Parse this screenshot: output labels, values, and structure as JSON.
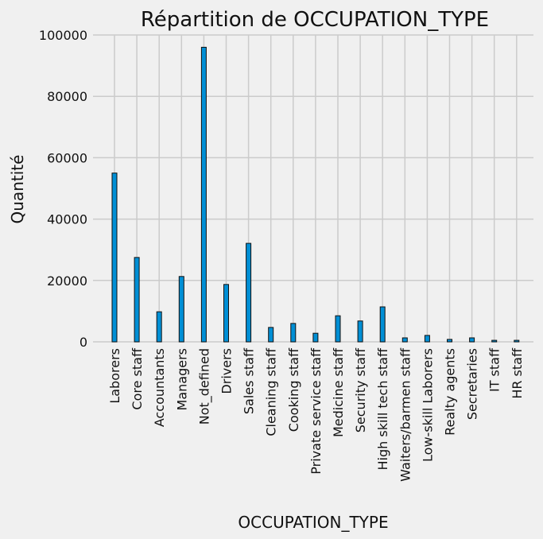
{
  "chart_data": {
    "type": "bar",
    "title": "Répartition de OCCUPATION_TYPE",
    "xlabel": "OCCUPATION_TYPE",
    "ylabel": "Quantité",
    "ylim": [
      0,
      100000
    ],
    "yticks": [
      "0",
      "20000",
      "40000",
      "60000",
      "80000",
      "100000"
    ],
    "grid": true,
    "categories": [
      "Laborers",
      "Core staff",
      "Accountants",
      "Managers",
      "Not_defined",
      "Drivers",
      "Sales staff",
      "Cleaning staff",
      "Cooking staff",
      "Private service staff",
      "Medicine staff",
      "Security staff",
      "High skill tech staff",
      "Waiters/barmen staff",
      "Low-skill Laborers",
      "Realty agents",
      "Secretaries",
      "IT staff",
      "HR staff"
    ],
    "values": [
      55000,
      27500,
      9800,
      21300,
      96000,
      18700,
      32100,
      4700,
      6000,
      2800,
      8500,
      6800,
      11400,
      1300,
      2100,
      800,
      1300,
      500,
      500
    ],
    "colors": {
      "bar": "#008fd5",
      "bar_edge": "#111111",
      "grid": "#cbcbcb",
      "background": "#f0f0f0"
    }
  }
}
